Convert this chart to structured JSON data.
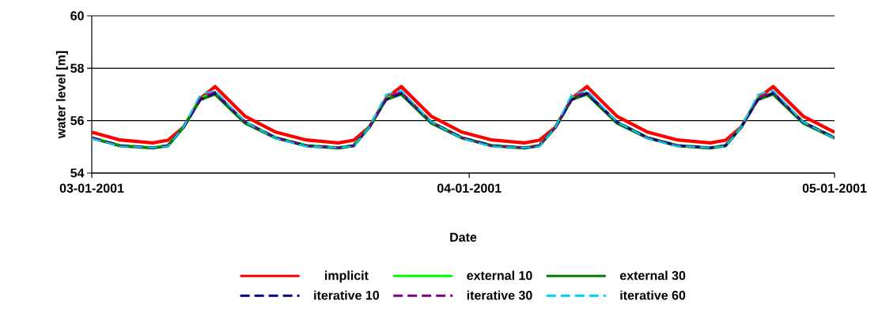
{
  "chart_data": {
    "type": "line",
    "xlabel": "Date",
    "ylabel": "water level [m]",
    "x": [
      "2001-03-01T00:00",
      "2001-03-03T08:00",
      "2001-03-06T00:00",
      "2001-03-07T06:00",
      "2001-03-08T13:00",
      "2001-03-09T22:00",
      "2001-03-11T03:00",
      "2001-03-13T14:00",
      "2001-03-16T03:00",
      "2001-03-18T15:00",
      "2001-03-21T06:00",
      "2001-03-22T12:00",
      "2001-03-23T19:00",
      "2001-03-25T04:00",
      "2001-03-26T10:00",
      "2001-03-28T21:00",
      "2001-03-31T10:00",
      "2001-04-02T21:00",
      "2001-04-05T13:00",
      "2001-04-06T18:00",
      "2001-04-08T02:00",
      "2001-04-09T10:00",
      "2001-04-10T16:00",
      "2001-04-13T03:00",
      "2001-04-15T16:00",
      "2001-04-18T03:00",
      "2001-04-20T19:00",
      "2001-04-22T01:00",
      "2001-04-23T08:00",
      "2001-04-24T17:00",
      "2001-04-25T23:00",
      "2001-04-28T10:00",
      "2001-05-01T00:00"
    ],
    "series": [
      {
        "name": "implicit",
        "color": "#ff0000",
        "line_style": "solid",
        "values": [
          55.56,
          55.26,
          55.15,
          55.25,
          55.75,
          56.85,
          57.3,
          56.17,
          55.56,
          55.26,
          55.15,
          55.25,
          55.75,
          56.85,
          57.3,
          56.17,
          55.56,
          55.26,
          55.15,
          55.25,
          55.75,
          56.85,
          57.3,
          56.17,
          55.56,
          55.26,
          55.15,
          55.25,
          55.75,
          56.85,
          57.3,
          56.17,
          55.56
        ]
      },
      {
        "name": "external 10",
        "color": "#00ff00",
        "line_style": "solid",
        "values": [
          55.35,
          55.05,
          54.97,
          55.05,
          55.75,
          56.85,
          57.05,
          55.95,
          55.35,
          55.05,
          54.97,
          55.05,
          55.75,
          56.85,
          57.05,
          55.95,
          55.35,
          55.05,
          54.97,
          55.05,
          55.75,
          56.85,
          57.05,
          55.95,
          55.35,
          55.05,
          54.97,
          55.05,
          55.75,
          56.85,
          57.05,
          55.95,
          55.35
        ]
      },
      {
        "name": "external 30",
        "color": "#008000",
        "line_style": "solid",
        "values": [
          55.33,
          55.03,
          54.95,
          55.03,
          55.75,
          56.8,
          57.0,
          55.9,
          55.33,
          55.03,
          54.95,
          55.03,
          55.75,
          56.8,
          57.0,
          55.9,
          55.33,
          55.03,
          54.95,
          55.03,
          55.75,
          56.8,
          57.0,
          55.9,
          55.33,
          55.03,
          54.95,
          55.03,
          55.75,
          56.8,
          57.0,
          55.9,
          55.33
        ]
      },
      {
        "name": "iterative 10",
        "color": "#000080",
        "line_style": "dashed",
        "values": [
          55.35,
          55.05,
          54.97,
          55.05,
          55.75,
          56.8,
          57.05,
          55.95,
          55.35,
          55.05,
          54.97,
          55.05,
          55.75,
          56.8,
          57.05,
          55.95,
          55.35,
          55.05,
          54.97,
          55.05,
          55.75,
          56.8,
          57.05,
          55.95,
          55.35,
          55.05,
          54.97,
          55.05,
          55.75,
          56.8,
          57.05,
          55.95,
          55.35
        ]
      },
      {
        "name": "iterative 30",
        "color": "#800080",
        "line_style": "dashed",
        "values": [
          55.35,
          55.05,
          54.97,
          55.05,
          55.75,
          56.85,
          57.1,
          55.95,
          55.35,
          55.05,
          54.97,
          55.05,
          55.75,
          56.85,
          57.1,
          55.95,
          55.35,
          55.05,
          54.97,
          55.05,
          55.75,
          56.85,
          57.1,
          55.95,
          55.35,
          55.05,
          54.97,
          55.05,
          55.75,
          56.85,
          57.1,
          55.95,
          55.35
        ]
      },
      {
        "name": "iterative 60",
        "color": "#00ccff",
        "line_style": "dashed",
        "values": [
          55.32,
          55.02,
          54.97,
          55.02,
          55.75,
          57.0,
          57.15,
          55.95,
          55.32,
          55.02,
          54.97,
          55.02,
          55.75,
          57.0,
          57.15,
          55.95,
          55.32,
          55.02,
          54.97,
          55.02,
          55.75,
          57.0,
          57.15,
          55.95,
          55.32,
          55.02,
          54.97,
          55.02,
          55.75,
          57.0,
          57.15,
          55.95,
          55.32
        ]
      }
    ],
    "xlim": [
      "2001-03-01",
      "2001-05-01"
    ],
    "xticks": [
      {
        "value": "2001-03-01",
        "label": "03-01-2001"
      },
      {
        "value": "2001-04-01",
        "label": "04-01-2001"
      },
      {
        "value": "2001-05-01",
        "label": "05-01-2001"
      }
    ],
    "ylim": [
      54,
      60
    ],
    "yticks": [
      54,
      56,
      58,
      60
    ],
    "grid": "y",
    "legend": "bottom"
  }
}
